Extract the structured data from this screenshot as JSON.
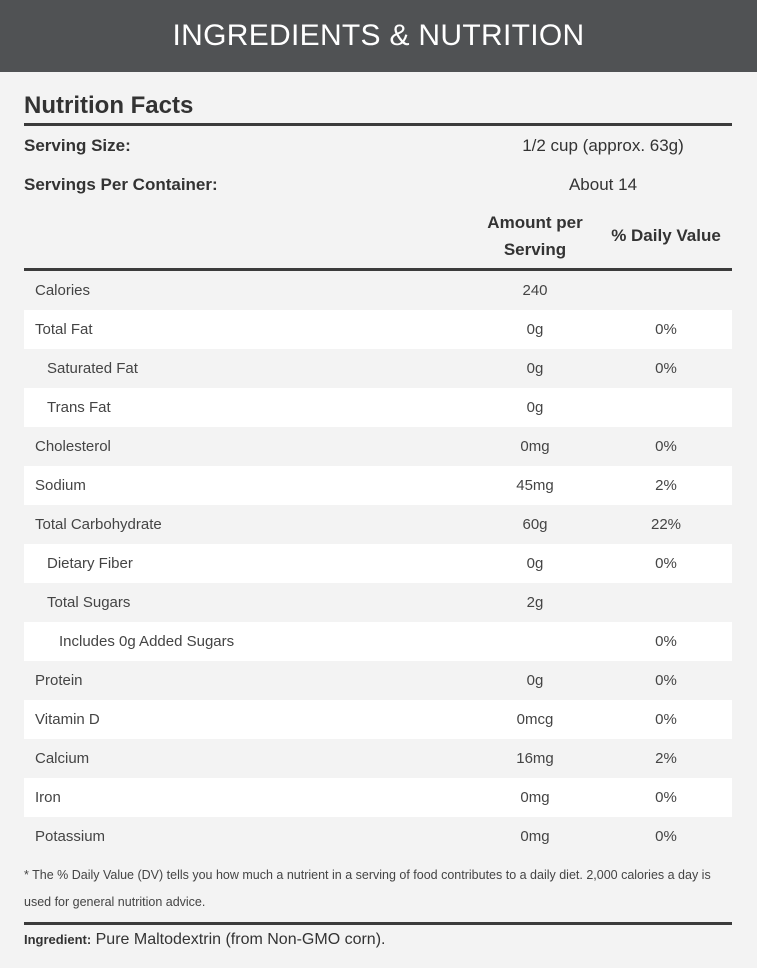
{
  "header": {
    "title": "INGREDIENTS & NUTRITION"
  },
  "facts": {
    "title": "Nutrition Facts",
    "serving_size_label": "Serving Size:",
    "serving_size": "1/2 cup (approx. 63g)",
    "servings_label": "Servings Per Container:",
    "servings": "About 14",
    "col_amount": "Amount per Serving",
    "col_dv": "% Daily Value",
    "rows": [
      {
        "name": "Calories",
        "amount": "240",
        "dv": "",
        "indent": 0
      },
      {
        "name": "Total Fat",
        "amount": "0g",
        "dv": "0%",
        "indent": 0
      },
      {
        "name": "Saturated Fat",
        "amount": "0g",
        "dv": "0%",
        "indent": 1
      },
      {
        "name": "Trans Fat",
        "amount": "0g",
        "dv": "",
        "indent": 1
      },
      {
        "name": "Cholesterol",
        "amount": "0mg",
        "dv": "0%",
        "indent": 0
      },
      {
        "name": "Sodium",
        "amount": "45mg",
        "dv": "2%",
        "indent": 0
      },
      {
        "name": "Total Carbohydrate",
        "amount": "60g",
        "dv": "22%",
        "indent": 0
      },
      {
        "name": "Dietary Fiber",
        "amount": "0g",
        "dv": "0%",
        "indent": 1
      },
      {
        "name": "Total Sugars",
        "amount": "2g",
        "dv": "",
        "indent": 1
      },
      {
        "name": "Includes 0g Added Sugars",
        "amount": "",
        "dv": "0%",
        "indent": 2
      },
      {
        "name": "Protein",
        "amount": "0g",
        "dv": "0%",
        "indent": 0
      },
      {
        "name": "Vitamin D",
        "amount": "0mcg",
        "dv": "0%",
        "indent": 0
      },
      {
        "name": "Calcium",
        "amount": "16mg",
        "dv": "2%",
        "indent": 0
      },
      {
        "name": "Iron",
        "amount": "0mg",
        "dv": "0%",
        "indent": 0
      },
      {
        "name": "Potassium",
        "amount": "0mg",
        "dv": "0%",
        "indent": 0
      }
    ],
    "footnote": "* The % Daily Value (DV) tells you how much a nutrient in a serving of food contributes to a daily diet. 2,000 calories a day is used for general nutrition advice.",
    "ingredient_label": "Ingredient:",
    "ingredient": "Pure Maltodextrin (from Non-GMO corn)."
  }
}
